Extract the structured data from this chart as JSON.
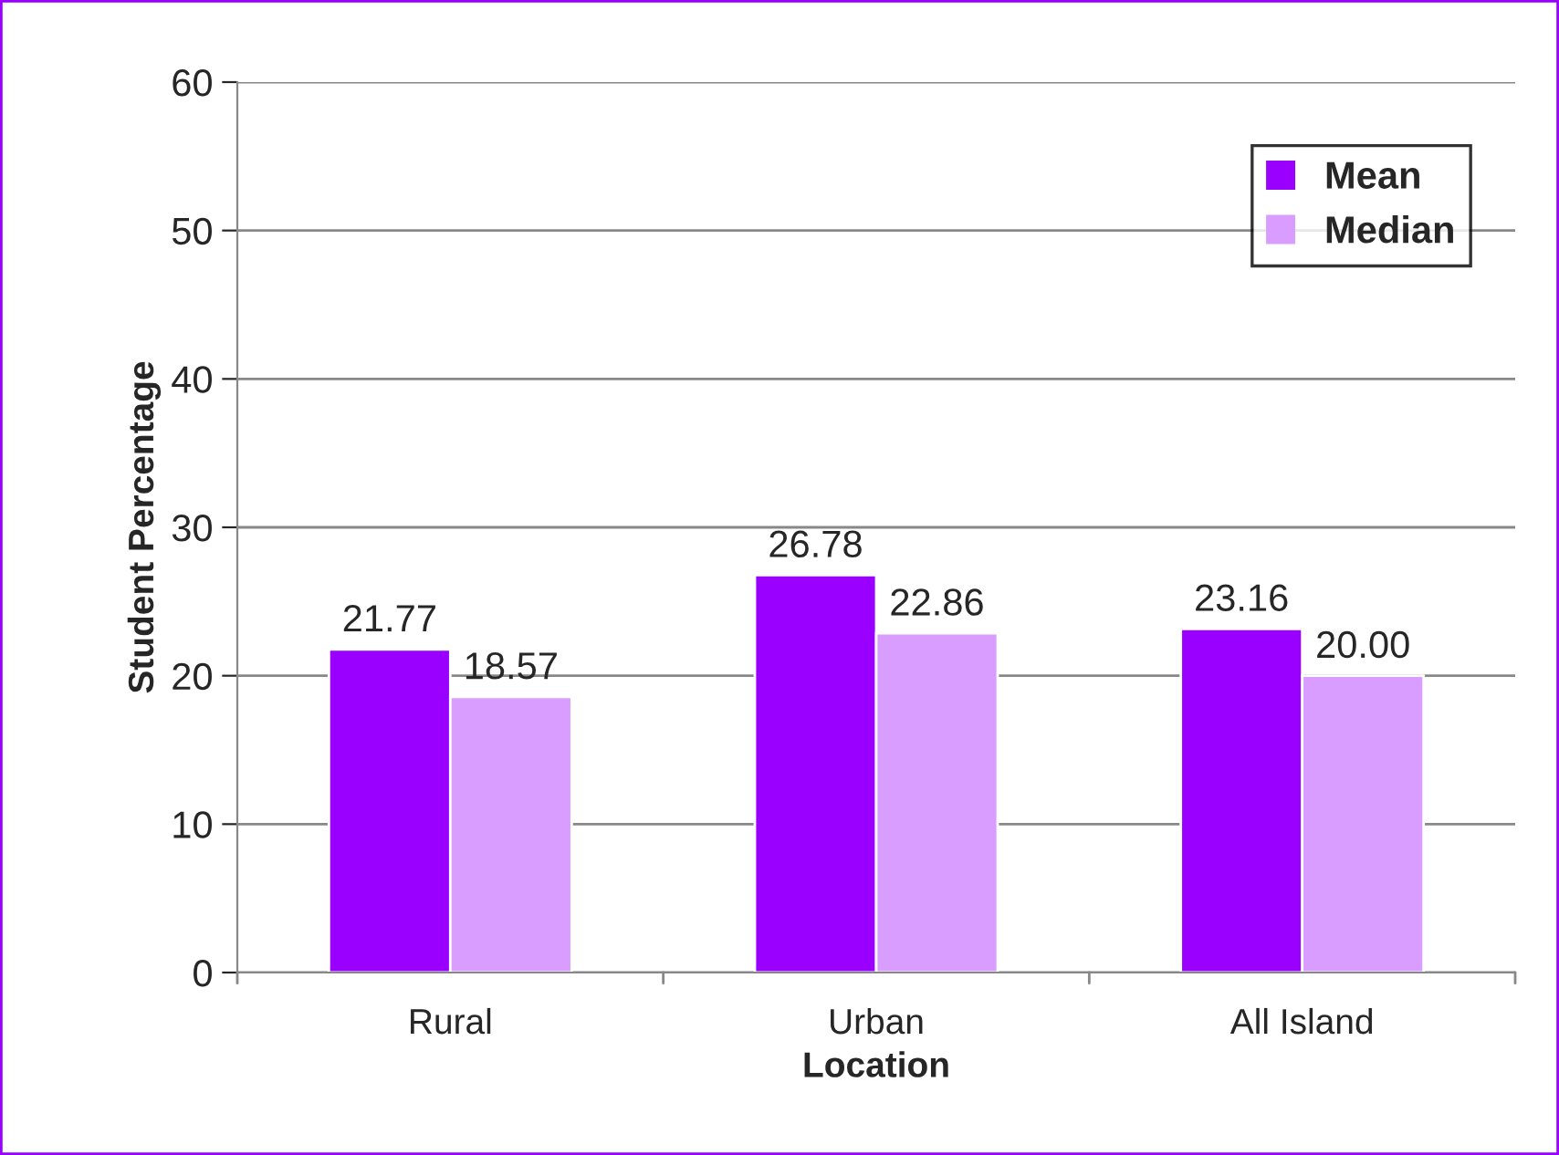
{
  "chart_data": {
    "type": "bar",
    "xlabel": "Location",
    "ylabel": "Student Percentage",
    "categories": [
      "Rural",
      "Urban",
      "All Island"
    ],
    "series": [
      {
        "name": "Mean",
        "color": "#9900ff",
        "values": [
          21.77,
          26.78,
          23.16
        ],
        "value_labels": [
          "21.77",
          "26.78",
          "23.16"
        ]
      },
      {
        "name": "Median",
        "color": "#d99cff",
        "values": [
          18.57,
          22.86,
          20.0
        ],
        "value_labels": [
          "18.57",
          "22.86",
          "20.00"
        ]
      }
    ],
    "ylim": [
      0,
      60
    ],
    "yticks": [
      0,
      10,
      20,
      30,
      40,
      50,
      60
    ],
    "grid": "y",
    "legend": "top right"
  }
}
